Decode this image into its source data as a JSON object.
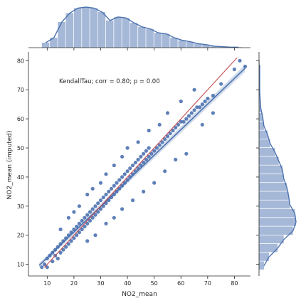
{
  "chart_data": {
    "type": "scatter",
    "title": "",
    "xlabel": "NO2_mean",
    "ylabel": "NO2_mean (imputed)",
    "xlim": [
      3,
      86
    ],
    "ylim": [
      6,
      83
    ],
    "xticks": [
      10,
      20,
      30,
      40,
      50,
      60,
      70,
      80
    ],
    "yticks": [
      10,
      20,
      30,
      40,
      50,
      60,
      70,
      80
    ],
    "annotation": "KendallTau; corr = 0.80; p = 0.00",
    "colors": {
      "points": "#4c72b0",
      "hist": "#4c72b0",
      "regression": "#4c72b0",
      "identity": "#c44e52"
    },
    "regression_fit": {
      "slope": 0.88,
      "intercept": 3.5,
      "x_range": [
        7,
        84
      ]
    },
    "identity_line": {
      "x_range": [
        9,
        81
      ]
    },
    "scatter_points": [
      [
        8,
        9
      ],
      [
        9,
        10
      ],
      [
        10,
        9
      ],
      [
        10,
        12
      ],
      [
        11,
        13
      ],
      [
        12,
        11
      ],
      [
        12,
        14
      ],
      [
        13,
        13
      ],
      [
        13,
        15
      ],
      [
        14,
        12
      ],
      [
        14,
        16
      ],
      [
        15,
        14
      ],
      [
        15,
        17
      ],
      [
        16,
        15
      ],
      [
        16,
        18
      ],
      [
        17,
        16
      ],
      [
        17,
        19
      ],
      [
        18,
        17
      ],
      [
        18,
        20
      ],
      [
        19,
        18
      ],
      [
        19,
        21
      ],
      [
        20,
        19
      ],
      [
        20,
        22
      ],
      [
        21,
        20
      ],
      [
        21,
        23
      ],
      [
        22,
        21
      ],
      [
        22,
        24
      ],
      [
        23,
        22
      ],
      [
        23,
        25
      ],
      [
        24,
        23
      ],
      [
        24,
        26
      ],
      [
        25,
        24
      ],
      [
        25,
        27
      ],
      [
        26,
        25
      ],
      [
        26,
        28
      ],
      [
        27,
        26
      ],
      [
        27,
        29
      ],
      [
        28,
        27
      ],
      [
        28,
        30
      ],
      [
        29,
        28
      ],
      [
        29,
        31
      ],
      [
        30,
        29
      ],
      [
        30,
        32
      ],
      [
        31,
        30
      ],
      [
        31,
        33
      ],
      [
        32,
        31
      ],
      [
        32,
        34
      ],
      [
        33,
        32
      ],
      [
        33,
        35
      ],
      [
        34,
        33
      ],
      [
        34,
        36
      ],
      [
        35,
        34
      ],
      [
        35,
        37
      ],
      [
        36,
        35
      ],
      [
        36,
        38
      ],
      [
        37,
        36
      ],
      [
        37,
        39
      ],
      [
        38,
        37
      ],
      [
        38,
        40
      ],
      [
        39,
        38
      ],
      [
        39,
        41
      ],
      [
        40,
        39
      ],
      [
        40,
        42
      ],
      [
        41,
        40
      ],
      [
        41,
        43
      ],
      [
        42,
        41
      ],
      [
        42,
        44
      ],
      [
        43,
        42
      ],
      [
        43,
        45
      ],
      [
        44,
        43
      ],
      [
        44,
        46
      ],
      [
        45,
        44
      ],
      [
        45,
        47
      ],
      [
        46,
        45
      ],
      [
        46,
        48
      ],
      [
        47,
        46
      ],
      [
        47,
        49
      ],
      [
        48,
        47
      ],
      [
        48,
        50
      ],
      [
        49,
        48
      ],
      [
        50,
        49
      ],
      [
        51,
        50
      ],
      [
        52,
        51
      ],
      [
        53,
        52
      ],
      [
        54,
        53
      ],
      [
        55,
        54
      ],
      [
        56,
        55
      ],
      [
        57,
        56
      ],
      [
        58,
        57
      ],
      [
        59,
        58
      ],
      [
        60,
        59
      ],
      [
        61,
        59
      ],
      [
        62,
        60
      ],
      [
        63,
        61
      ],
      [
        64,
        62
      ],
      [
        65,
        63
      ],
      [
        66,
        64
      ],
      [
        67,
        64
      ],
      [
        68,
        65
      ],
      [
        69,
        66
      ],
      [
        70,
        67
      ],
      [
        72,
        68
      ],
      [
        75,
        72
      ],
      [
        80,
        77
      ],
      [
        82,
        80
      ],
      [
        84,
        78
      ],
      [
        15,
        22
      ],
      [
        18,
        26
      ],
      [
        20,
        28
      ],
      [
        22,
        30
      ],
      [
        25,
        34
      ],
      [
        27,
        36
      ],
      [
        30,
        38
      ],
      [
        32,
        41
      ],
      [
        35,
        44
      ],
      [
        38,
        47
      ],
      [
        40,
        50
      ],
      [
        44,
        52
      ],
      [
        48,
        56
      ],
      [
        52,
        58
      ],
      [
        55,
        62
      ],
      [
        60,
        66
      ],
      [
        65,
        70
      ],
      [
        25,
        18
      ],
      [
        28,
        20
      ],
      [
        32,
        24
      ],
      [
        35,
        26
      ],
      [
        38,
        29
      ],
      [
        42,
        32
      ],
      [
        46,
        35
      ],
      [
        50,
        38
      ],
      [
        54,
        42
      ],
      [
        58,
        46
      ],
      [
        62,
        48
      ],
      [
        68,
        58
      ],
      [
        72,
        62
      ]
    ],
    "marginal_x_hist": {
      "bin_edges": [
        8,
        11,
        14,
        17,
        20,
        23,
        26,
        29,
        32,
        35,
        38,
        41,
        44,
        47,
        50,
        53,
        56,
        59,
        62,
        65,
        68,
        71,
        74,
        77,
        80,
        83
      ],
      "counts": [
        10,
        20,
        52,
        70,
        80,
        82,
        80,
        72,
        55,
        62,
        60,
        50,
        42,
        38,
        30,
        28,
        20,
        15,
        12,
        8,
        6,
        3,
        2,
        1,
        1
      ]
    },
    "marginal_y_hist": {
      "bin_edges": [
        8,
        11,
        14,
        17,
        20,
        23,
        26,
        29,
        32,
        35,
        38,
        41,
        44,
        47,
        50,
        53,
        56,
        59,
        62,
        65,
        68,
        71,
        74,
        77,
        80
      ],
      "counts": [
        8,
        16,
        30,
        40,
        55,
        60,
        58,
        50,
        48,
        45,
        40,
        38,
        32,
        26,
        18,
        14,
        8,
        6,
        3,
        2,
        1,
        1,
        1,
        1
      ]
    }
  }
}
